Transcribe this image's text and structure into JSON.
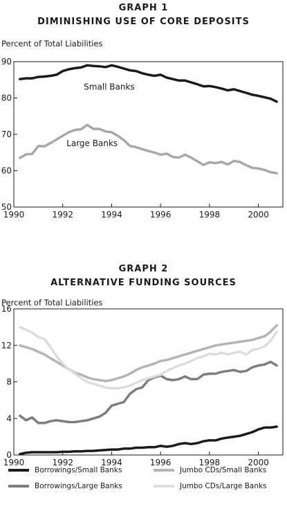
{
  "chart_data": [
    {
      "type": "line",
      "title": "GRAPH  1",
      "subtitle": "DIMINISHING USE OF CORE DEPOSITS",
      "ylabel": "Percent of Total Liabilities",
      "xlabel": "",
      "xlim": [
        1990,
        2001
      ],
      "ylim": [
        50,
        90
      ],
      "xticks": [
        1990,
        1992,
        1994,
        1996,
        1998,
        2000
      ],
      "yticks": [
        50,
        60,
        70,
        80,
        90
      ],
      "grid": false,
      "series": [
        {
          "name": "Small Banks",
          "color": "#1a1a1a",
          "x": [
            1990.25,
            1990.5,
            1990.75,
            1991,
            1991.25,
            1991.5,
            1991.75,
            1992,
            1992.25,
            1992.5,
            1992.75,
            1993,
            1993.25,
            1993.5,
            1993.75,
            1994,
            1994.25,
            1994.5,
            1994.75,
            1995,
            1995.25,
            1995.5,
            1995.75,
            1996,
            1996.25,
            1996.5,
            1996.75,
            1997,
            1997.25,
            1997.5,
            1997.75,
            1998,
            1998.25,
            1998.5,
            1998.75,
            1999,
            1999.25,
            1999.5,
            1999.75,
            2000,
            2000.25,
            2000.5,
            2000.75
          ],
          "values": [
            85.2,
            85.4,
            85.4,
            85.8,
            85.9,
            86.1,
            86.4,
            87.4,
            87.9,
            88.2,
            88.4,
            89.0,
            88.8,
            88.7,
            88.5,
            89.0,
            88.6,
            88.1,
            87.6,
            87.4,
            86.8,
            86.4,
            86.1,
            86.4,
            85.6,
            85.2,
            84.8,
            84.8,
            84.3,
            83.8,
            83.2,
            83.3,
            83.0,
            82.6,
            82.1,
            82.4,
            81.9,
            81.4,
            80.9,
            80.6,
            80.2,
            79.8,
            79.0
          ]
        },
        {
          "name": "Large Banks",
          "color": "#a8a8a8",
          "x": [
            1990.25,
            1990.5,
            1990.75,
            1991,
            1991.25,
            1991.5,
            1991.75,
            1992,
            1992.25,
            1992.5,
            1992.75,
            1993,
            1993.25,
            1993.5,
            1993.75,
            1994,
            1994.25,
            1994.5,
            1994.75,
            1995,
            1995.25,
            1995.5,
            1995.75,
            1996,
            1996.25,
            1996.5,
            1996.75,
            1997,
            1997.25,
            1997.5,
            1997.75,
            1998,
            1998.25,
            1998.5,
            1998.75,
            1999,
            1999.25,
            1999.5,
            1999.75,
            2000,
            2000.25,
            2000.5,
            2000.75
          ],
          "values": [
            63.5,
            64.5,
            64.6,
            66.8,
            66.7,
            67.6,
            68.6,
            69.6,
            70.6,
            71.2,
            71.4,
            72.6,
            71.5,
            71.5,
            70.8,
            70.6,
            69.6,
            68.4,
            66.8,
            66.5,
            65.9,
            65.4,
            65.0,
            64.4,
            64.7,
            63.8,
            63.6,
            64.4,
            63.6,
            62.6,
            61.6,
            62.3,
            62.1,
            62.4,
            61.7,
            62.7,
            62.4,
            61.5,
            60.8,
            60.6,
            60.2,
            59.6,
            59.3
          ]
        }
      ],
      "annotations": [
        "Small Banks",
        "Large Banks"
      ]
    },
    {
      "type": "line",
      "title": "GRAPH  2",
      "subtitle": "ALTERNATIVE FUNDING SOURCES",
      "ylabel": "Percent of Total Liabilities",
      "xlabel": "",
      "xlim": [
        1990,
        2001
      ],
      "ylim": [
        0,
        16
      ],
      "xticks": [
        1990,
        1992,
        1994,
        1996,
        1998,
        2000
      ],
      "yticks": [
        0,
        4,
        8,
        12,
        16
      ],
      "grid": false,
      "legend": "bottom",
      "series": [
        {
          "name": "Borrowings/Small Banks",
          "color": "#1a1a1a",
          "x": [
            1990.25,
            1990.5,
            1990.75,
            1991,
            1991.25,
            1991.5,
            1991.75,
            1992,
            1992.25,
            1992.5,
            1992.75,
            1993,
            1993.25,
            1993.5,
            1993.75,
            1994,
            1994.25,
            1994.5,
            1994.75,
            1995,
            1995.25,
            1995.5,
            1995.75,
            1996,
            1996.25,
            1996.5,
            1996.75,
            1997,
            1997.25,
            1997.5,
            1997.75,
            1998,
            1998.25,
            1998.5,
            1998.75,
            1999,
            1999.25,
            1999.5,
            1999.75,
            2000,
            2000.25,
            2000.5,
            2000.75
          ],
          "values": [
            0.1,
            0.25,
            0.3,
            0.3,
            0.3,
            0.3,
            0.3,
            0.35,
            0.35,
            0.4,
            0.4,
            0.45,
            0.45,
            0.5,
            0.55,
            0.6,
            0.6,
            0.7,
            0.7,
            0.8,
            0.8,
            0.85,
            0.85,
            1.0,
            0.9,
            1.0,
            1.2,
            1.3,
            1.2,
            1.3,
            1.5,
            1.6,
            1.6,
            1.8,
            1.9,
            2.0,
            2.1,
            2.3,
            2.5,
            2.8,
            3.0,
            3.0,
            3.1
          ]
        },
        {
          "name": "Borrowings/Large Banks",
          "color": "#7d7d7d",
          "x": [
            1990.25,
            1990.5,
            1990.75,
            1991,
            1991.25,
            1991.5,
            1991.75,
            1992,
            1992.25,
            1992.5,
            1992.75,
            1993,
            1993.25,
            1993.5,
            1993.75,
            1994,
            1994.25,
            1994.5,
            1994.75,
            1995,
            1995.25,
            1995.5,
            1995.75,
            1996,
            1996.25,
            1996.5,
            1996.75,
            1997,
            1997.25,
            1997.5,
            1997.75,
            1998,
            1998.25,
            1998.5,
            1998.75,
            1999,
            1999.25,
            1999.5,
            1999.75,
            2000,
            2000.25,
            2000.5,
            2000.75
          ],
          "values": [
            4.3,
            3.8,
            4.1,
            3.5,
            3.5,
            3.7,
            3.8,
            3.7,
            3.6,
            3.6,
            3.7,
            3.8,
            4.0,
            4.2,
            4.6,
            5.4,
            5.6,
            5.8,
            6.7,
            7.2,
            7.4,
            8.2,
            8.5,
            8.7,
            8.3,
            8.2,
            8.3,
            8.6,
            8.3,
            8.3,
            8.8,
            8.9,
            8.9,
            9.1,
            9.2,
            9.3,
            9.1,
            9.2,
            9.6,
            9.8,
            9.9,
            10.2,
            9.8
          ]
        },
        {
          "name": "Jumbo CDs/Small Banks",
          "color": "#b4b4b4",
          "x": [
            1990.25,
            1990.5,
            1990.75,
            1991,
            1991.25,
            1991.5,
            1991.75,
            1992,
            1992.25,
            1992.5,
            1992.75,
            1993,
            1993.25,
            1993.5,
            1993.75,
            1994,
            1994.25,
            1994.5,
            1994.75,
            1995,
            1995.25,
            1995.5,
            1995.75,
            1996,
            1996.25,
            1996.5,
            1996.75,
            1997,
            1997.25,
            1997.5,
            1997.75,
            1998,
            1998.25,
            1998.5,
            1998.75,
            1999,
            1999.25,
            1999.5,
            1999.75,
            2000,
            2000.25,
            2000.5,
            2000.75
          ],
          "values": [
            12.0,
            11.8,
            11.6,
            11.3,
            11.0,
            10.6,
            10.2,
            9.8,
            9.4,
            9.0,
            8.8,
            8.5,
            8.3,
            8.2,
            8.1,
            8.2,
            8.4,
            8.6,
            8.9,
            9.3,
            9.6,
            9.8,
            10.0,
            10.3,
            10.4,
            10.6,
            10.8,
            11.0,
            11.2,
            11.4,
            11.6,
            11.8,
            12.0,
            12.1,
            12.2,
            12.3,
            12.4,
            12.5,
            12.6,
            12.8,
            13.0,
            13.5,
            14.2
          ]
        },
        {
          "name": "Jumbo CDs/Large Banks",
          "color": "#dddddd",
          "x": [
            1990.25,
            1990.5,
            1990.75,
            1991,
            1991.25,
            1991.5,
            1991.75,
            1992,
            1992.25,
            1992.5,
            1992.75,
            1993,
            1993.25,
            1993.5,
            1993.75,
            1994,
            1994.25,
            1994.5,
            1994.75,
            1995,
            1995.25,
            1995.5,
            1995.75,
            1996,
            1996.25,
            1996.5,
            1996.75,
            1997,
            1997.25,
            1997.5,
            1997.75,
            1998,
            1998.25,
            1998.5,
            1998.75,
            1999,
            1999.25,
            1999.5,
            1999.75,
            2000,
            2000.25,
            2000.5,
            2000.75
          ],
          "values": [
            14.0,
            13.7,
            13.4,
            12.9,
            12.7,
            11.8,
            10.8,
            10.0,
            9.4,
            8.9,
            8.4,
            8.0,
            7.8,
            7.6,
            7.4,
            7.3,
            7.3,
            7.4,
            7.6,
            7.9,
            8.2,
            8.4,
            8.6,
            8.8,
            9.2,
            9.5,
            9.8,
            10.0,
            10.3,
            10.6,
            10.8,
            11.1,
            11.0,
            11.2,
            11.0,
            11.2,
            11.3,
            11.0,
            11.5,
            11.6,
            11.9,
            12.5,
            13.5
          ]
        }
      ]
    }
  ]
}
